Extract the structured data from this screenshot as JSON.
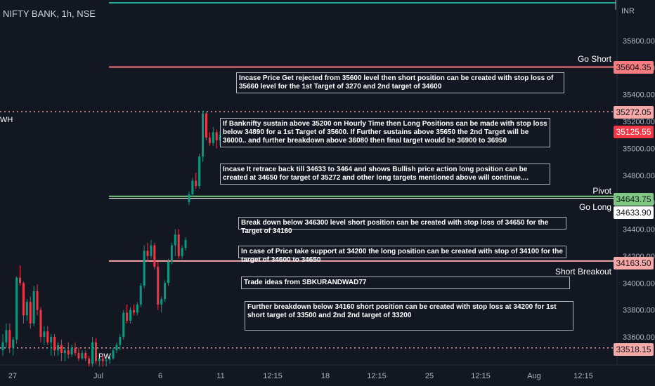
{
  "header": {
    "symbol": "NIFTY BANK, 1h, NSE"
  },
  "axis": {
    "currency": "INR",
    "price_ticks": [
      "35800.00",
      "35600.00",
      "35400.00",
      "35200.00",
      "35000.00",
      "34800.00",
      "34600.00",
      "34400.00",
      "34200.00",
      "34000.00",
      "33800.00",
      "33600.00"
    ],
    "time_ticks": [
      "27",
      "Jul",
      "6",
      "11",
      "12:15",
      "18",
      "12:15",
      "25",
      "12:15",
      "Aug",
      "12:15"
    ]
  },
  "levels": {
    "go_short": {
      "name": "Go Short",
      "value": "35604.35",
      "color": "#f77c80"
    },
    "pwh_line": {
      "name": "WH",
      "value": "35272.05"
    },
    "last_price": {
      "value": "35125.55",
      "color": "#f23645"
    },
    "pivot": {
      "name": "Pivot",
      "value": "34643.75",
      "color": "#81c784"
    },
    "go_long": {
      "name": "Go Long",
      "value": "34633.90"
    },
    "short_breakout": {
      "name": "Short Breakout",
      "value": "34163.50",
      "color": "#f7a9a7"
    },
    "pwl_line": {
      "name": "PW",
      "value": "33518.15"
    }
  },
  "notes": [
    "Incase Price Get rejected from 35600 level then short position can be created  with stop loss of 35660 level for the 1st Target of 3270 and 2nd target of 34600",
    "If Banknifty sustain above  35200  on Hourly Time then Long Positions can be made with stop loss below 34890 for a 1st Target of 35600. If Further sustains above 35650 the 2nd Target will be 36000.. and further breakdown above 36080 then final target would be 36900 to 36950",
    "Incase It retrace back till 34633 to 3464 and shows Bullish price action long position can be created at 34650 for target of 35272  and other long targets mentioned above will continue....",
    "Break down below 346300 level  short position can  be created with stop loss of 34650 for the Target of 34160",
    "In case of Price take support at 34200 the long position can be created with stop of 34100  for the target of 34600 to 34650",
    "Trade ideas from SBKURANDWAD77",
    "Further breakdown below 34160 short position can be created with stop loss at 34200 for  1st short target of 33500 and 2nd 2nd target of 33200"
  ],
  "chart_data": {
    "type": "candlestick",
    "title": "NIFTY BANK, 1h, NSE",
    "ylabel": "INR",
    "ylim": [
      33480,
      35960
    ],
    "up_color": "#089981",
    "down_color": "#f23645",
    "candles": [
      {
        "o": 33500,
        "h": 33620,
        "l": 33460,
        "c": 33560
      },
      {
        "o": 33560,
        "h": 33700,
        "l": 33520,
        "c": 33650
      },
      {
        "o": 33650,
        "h": 33700,
        "l": 33480,
        "c": 33520
      },
      {
        "o": 33520,
        "h": 33600,
        "l": 33460,
        "c": 33580
      },
      {
        "o": 33580,
        "h": 34050,
        "l": 33550,
        "c": 34040
      },
      {
        "o": 34040,
        "h": 34130,
        "l": 33980,
        "c": 34000
      },
      {
        "o": 34000,
        "h": 34010,
        "l": 33700,
        "c": 33760
      },
      {
        "o": 33760,
        "h": 33880,
        "l": 33720,
        "c": 33860
      },
      {
        "o": 33860,
        "h": 33900,
        "l": 33660,
        "c": 33700
      },
      {
        "o": 33700,
        "h": 33980,
        "l": 33680,
        "c": 33940
      },
      {
        "o": 33940,
        "h": 33990,
        "l": 33760,
        "c": 33800
      },
      {
        "o": 33800,
        "h": 33820,
        "l": 33560,
        "c": 33600
      },
      {
        "o": 33600,
        "h": 33680,
        "l": 33540,
        "c": 33640
      },
      {
        "o": 33640,
        "h": 33680,
        "l": 33540,
        "c": 33560
      },
      {
        "o": 33560,
        "h": 33620,
        "l": 33460,
        "c": 33600
      },
      {
        "o": 33600,
        "h": 33620,
        "l": 33460,
        "c": 33500
      },
      {
        "o": 33500,
        "h": 33560,
        "l": 33460,
        "c": 33540
      },
      {
        "o": 33540,
        "h": 33580,
        "l": 33420,
        "c": 33480
      },
      {
        "o": 33480,
        "h": 33520,
        "l": 33420,
        "c": 33500
      },
      {
        "o": 33500,
        "h": 33560,
        "l": 33440,
        "c": 33470
      },
      {
        "o": 33470,
        "h": 33540,
        "l": 33450,
        "c": 33520
      },
      {
        "o": 33520,
        "h": 33560,
        "l": 33460,
        "c": 33480
      },
      {
        "o": 33480,
        "h": 33520,
        "l": 33420,
        "c": 33440
      },
      {
        "o": 33440,
        "h": 33500,
        "l": 33430,
        "c": 33480
      },
      {
        "o": 33480,
        "h": 33500,
        "l": 33420,
        "c": 33440
      },
      {
        "o": 33440,
        "h": 33460,
        "l": 33380,
        "c": 33400
      },
      {
        "o": 33400,
        "h": 33600,
        "l": 33380,
        "c": 33560
      },
      {
        "o": 33560,
        "h": 33590,
        "l": 33400,
        "c": 33420
      },
      {
        "o": 33420,
        "h": 33460,
        "l": 33380,
        "c": 33440
      },
      {
        "o": 33440,
        "h": 33460,
        "l": 33380,
        "c": 33420
      },
      {
        "o": 33420,
        "h": 33450,
        "l": 33380,
        "c": 33430
      },
      {
        "o": 33430,
        "h": 33460,
        "l": 33400,
        "c": 33440
      },
      {
        "o": 33440,
        "h": 33520,
        "l": 33430,
        "c": 33500
      },
      {
        "o": 33500,
        "h": 33560,
        "l": 33480,
        "c": 33540
      },
      {
        "o": 33540,
        "h": 33620,
        "l": 33500,
        "c": 33600
      },
      {
        "o": 33600,
        "h": 33800,
        "l": 33580,
        "c": 33780
      },
      {
        "o": 33780,
        "h": 33840,
        "l": 33700,
        "c": 33720
      },
      {
        "o": 33720,
        "h": 33820,
        "l": 33700,
        "c": 33800
      },
      {
        "o": 33800,
        "h": 33840,
        "l": 33760,
        "c": 33780
      },
      {
        "o": 33780,
        "h": 33860,
        "l": 33760,
        "c": 33840
      },
      {
        "o": 33840,
        "h": 34000,
        "l": 33820,
        "c": 33980
      },
      {
        "o": 33980,
        "h": 34280,
        "l": 33960,
        "c": 34240
      },
      {
        "o": 34240,
        "h": 34300,
        "l": 34160,
        "c": 34200
      },
      {
        "o": 34200,
        "h": 34320,
        "l": 34180,
        "c": 34280
      },
      {
        "o": 34280,
        "h": 34300,
        "l": 34100,
        "c": 34120
      },
      {
        "o": 34120,
        "h": 34160,
        "l": 33800,
        "c": 33840
      },
      {
        "o": 33840,
        "h": 33900,
        "l": 33780,
        "c": 33880
      },
      {
        "o": 33880,
        "h": 34020,
        "l": 33860,
        "c": 34000
      },
      {
        "o": 34000,
        "h": 34180,
        "l": 33980,
        "c": 34160
      },
      {
        "o": 34160,
        "h": 34300,
        "l": 34140,
        "c": 34280
      },
      {
        "o": 34280,
        "h": 34400,
        "l": 34200,
        "c": 34360
      },
      {
        "o": 34360,
        "h": 34400,
        "l": 34180,
        "c": 34200
      },
      {
        "o": 34200,
        "h": 34280,
        "l": 34180,
        "c": 34260
      },
      {
        "o": 34260,
        "h": 34340,
        "l": 34240,
        "c": 34320
      },
      {
        "o": 34600,
        "h": 34680,
        "l": 34580,
        "c": 34660
      },
      {
        "o": 34660,
        "h": 34780,
        "l": 34640,
        "c": 34760
      },
      {
        "o": 34760,
        "h": 34820,
        "l": 34700,
        "c": 34720
      },
      {
        "o": 34720,
        "h": 34960,
        "l": 34700,
        "c": 34940
      },
      {
        "o": 34940,
        "h": 35280,
        "l": 34900,
        "c": 35260
      },
      {
        "o": 35260,
        "h": 35270,
        "l": 35060,
        "c": 35080
      },
      {
        "o": 35080,
        "h": 35120,
        "l": 35020,
        "c": 35040
      },
      {
        "o": 35040,
        "h": 35160,
        "l": 35020,
        "c": 35120
      },
      {
        "o": 35120,
        "h": 35140,
        "l": 35000,
        "c": 35060
      },
      {
        "o": 35060,
        "h": 35130,
        "l": 35020,
        "c": 35100
      },
      {
        "o": 35100,
        "h": 35160,
        "l": 35080,
        "c": 35125
      }
    ]
  }
}
